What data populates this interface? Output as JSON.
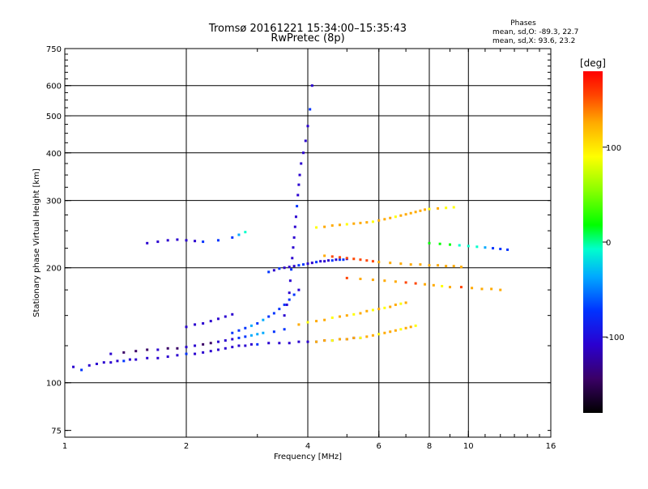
{
  "chart_data": {
    "type": "scatter",
    "title": "Tromsø 20161221 15:34:00–15:35:43",
    "subtitle": "RwPretec (8p)",
    "xlabel": "Frequency [MHz]",
    "ylabel": "Stationary phase Virtual Height [km]",
    "x_scale": "log",
    "y_scale": "log",
    "xlim": [
      1,
      16
    ],
    "ylim": [
      72,
      750
    ],
    "x_ticks": [
      1,
      2,
      4,
      6,
      8,
      10,
      16
    ],
    "y_ticks": [
      75,
      100,
      200,
      300,
      400,
      500,
      600,
      750
    ],
    "grid_x": [
      2,
      4,
      6,
      8,
      10
    ],
    "grid_y": [
      100,
      200,
      300,
      400,
      500,
      600
    ],
    "stats": {
      "heading": "Phases",
      "line_o": "mean, sd,O: -89.3, 22.7",
      "line_x": "mean, sd,X:  93.6, 23.2"
    },
    "colorbar": {
      "label": "[deg]",
      "range": [
        -180,
        180
      ],
      "ticks": [
        100,
        0,
        -100
      ],
      "colors": [
        "#000000",
        "#3a0066",
        "#2a00d0",
        "#0033ff",
        "#00aaff",
        "#00ffcc",
        "#00ff00",
        "#88ff00",
        "#ffff00",
        "#ffaa00",
        "#ff4400",
        "#ff0000"
      ]
    },
    "series": [
      {
        "x": [
          1.05,
          1.1,
          1.15,
          1.2,
          1.25,
          1.3,
          1.35,
          1.4,
          1.45,
          1.5,
          1.6,
          1.7,
          1.8,
          1.9,
          2.0,
          2.1,
          2.2,
          2.3,
          2.4,
          2.5,
          2.6,
          2.7,
          2.8,
          2.9,
          3.0,
          3.2,
          3.4,
          3.6,
          3.8,
          4.0,
          4.2,
          4.4,
          4.6,
          4.8,
          5.0,
          5.2,
          5.4
        ],
        "y": [
          110,
          108,
          111,
          112,
          113,
          113,
          114,
          114,
          115,
          115,
          116,
          116,
          117,
          118,
          119,
          119,
          120,
          121,
          122,
          123,
          124,
          125,
          125,
          126,
          126,
          127,
          127,
          127,
          128,
          128,
          128,
          129,
          129,
          130,
          130,
          131,
          131
        ],
        "phase": [
          -100,
          -95,
          -110,
          -105,
          -100,
          -115,
          -100,
          -95,
          -105,
          -110,
          -100,
          -105,
          -100,
          -110,
          -95,
          -100,
          -105,
          -100,
          -110,
          -100,
          -100,
          -105,
          -110,
          -100,
          -95,
          -100,
          -110,
          -105,
          -100,
          -100,
          -95,
          -100,
          -110,
          -95,
          -100,
          -105,
          -100
        ]
      },
      {
        "x": [
          1.3,
          1.4,
          1.5,
          1.6,
          1.7,
          1.8,
          1.9,
          2.0,
          2.1,
          2.2,
          2.3,
          2.4,
          2.5,
          2.6,
          2.7,
          2.8,
          2.9,
          3.0,
          3.1,
          3.3,
          3.5
        ],
        "y": [
          119,
          120,
          121,
          122,
          122,
          123,
          123,
          124,
          125,
          126,
          127,
          128,
          129,
          130,
          131,
          132,
          133,
          134,
          135,
          136,
          138
        ],
        "phase": [
          -130,
          -135,
          -140,
          -135,
          -130,
          -140,
          -135,
          -130,
          -125,
          -135,
          -140,
          -130,
          -120,
          -110,
          -80,
          -70,
          -60,
          -65,
          -60,
          -70,
          -80
        ]
      },
      {
        "x": [
          2.6,
          2.7,
          2.8,
          2.9,
          3.0,
          3.1,
          3.2,
          3.3,
          3.4,
          3.5,
          3.6,
          3.7,
          3.8
        ],
        "y": [
          135,
          137,
          139,
          141,
          143,
          146,
          149,
          152,
          156,
          160,
          165,
          170,
          175
        ],
        "phase": [
          -80,
          -70,
          -75,
          -65,
          -70,
          -60,
          -70,
          -75,
          -80,
          -85,
          -90,
          -95,
          -100
        ]
      },
      {
        "x": [
          3.5,
          3.55,
          3.6,
          3.62,
          3.64,
          3.66,
          3.68,
          3.7,
          3.72,
          3.74,
          3.76,
          3.78,
          3.8,
          3.82,
          3.85,
          3.9,
          3.95,
          4.0,
          4.05,
          4.1
        ],
        "y": [
          150,
          160,
          172,
          185,
          198,
          212,
          226,
          240,
          256,
          272,
          290,
          310,
          330,
          350,
          375,
          400,
          430,
          470,
          520,
          600
        ],
        "phase": [
          -105,
          -100,
          -110,
          -100,
          -95,
          -105,
          -100,
          -110,
          -105,
          -100,
          -95,
          -100,
          -110,
          -100,
          -105,
          -110,
          -100,
          -105,
          -95,
          -100
        ]
      },
      {
        "x": [
          3.2,
          3.3,
          3.4,
          3.5,
          3.6,
          3.7,
          3.8,
          3.9,
          4.0,
          4.1,
          4.2,
          4.3,
          4.4,
          4.5,
          4.6,
          4.7,
          4.8,
          4.9,
          5.0
        ],
        "y": [
          195,
          197,
          199,
          200,
          201,
          202,
          203,
          204,
          205,
          206,
          207,
          208,
          208,
          209,
          209,
          210,
          210,
          210,
          211
        ],
        "phase": [
          -90,
          -100,
          -95,
          -100,
          -110,
          -100,
          -95,
          -90,
          -100,
          -105,
          -95,
          -100,
          -110,
          -100,
          -95,
          -100,
          -90,
          -95,
          -100
        ]
      },
      {
        "x": [
          3.8,
          4.0,
          4.2,
          4.4,
          4.6,
          4.8,
          5.0,
          5.2,
          5.4,
          5.6,
          5.8,
          6.0,
          6.2,
          6.4,
          6.6,
          6.8,
          7.0
        ],
        "y": [
          142,
          144,
          145,
          146,
          148,
          149,
          150,
          151,
          152,
          154,
          155,
          156,
          157,
          158,
          160,
          161,
          162
        ],
        "phase": [
          100,
          95,
          105,
          100,
          90,
          100,
          110,
          95,
          100,
          105,
          90,
          100,
          95,
          100,
          110,
          95,
          100
        ]
      },
      {
        "x": [
          4.2,
          4.4,
          4.6,
          4.8,
          5.0,
          5.2,
          5.4,
          5.6,
          5.8,
          6.0,
          6.2,
          6.4,
          6.6,
          6.8,
          7.0,
          7.2,
          7.4
        ],
        "y": [
          128,
          129,
          129,
          130,
          130,
          131,
          131,
          132,
          133,
          134,
          135,
          136,
          137,
          138,
          139,
          140,
          141
        ],
        "phase": [
          100,
          105,
          95,
          100,
          110,
          100,
          95,
          105,
          100,
          95,
          100,
          110,
          100,
          95,
          100,
          105,
          90
        ]
      },
      {
        "x": [
          4.2,
          4.4,
          4.6,
          4.8,
          5.0,
          5.2,
          5.4,
          5.6,
          5.8,
          6.0,
          6.2,
          6.4,
          6.6,
          6.8,
          7.0,
          7.2,
          7.4,
          7.6,
          7.8,
          8.0,
          8.4,
          8.8,
          9.2
        ],
        "y": [
          255,
          256,
          258,
          259,
          260,
          261,
          262,
          263,
          264,
          266,
          268,
          270,
          272,
          274,
          276,
          278,
          280,
          282,
          284,
          285,
          286,
          287,
          288
        ],
        "phase": [
          90,
          100,
          110,
          100,
          95,
          105,
          120,
          100,
          95,
          110,
          100,
          105,
          95,
          110,
          120,
          100,
          105,
          110,
          100,
          95,
          100,
          90,
          85
        ]
      },
      {
        "x": [
          4.4,
          4.6,
          4.8,
          5.0,
          5.2,
          5.4,
          5.6,
          5.8,
          6.0,
          6.4,
          6.8,
          7.2,
          7.6,
          8.0,
          8.4,
          8.8,
          9.2,
          9.6
        ],
        "y": [
          215,
          214,
          213,
          212,
          211,
          210,
          209,
          208,
          207,
          206,
          205,
          204,
          204,
          203,
          203,
          202,
          202,
          201
        ],
        "phase": [
          130,
          140,
          150,
          160,
          145,
          135,
          140,
          150,
          120,
          110,
          115,
          120,
          110,
          105,
          100,
          110,
          120,
          115
        ]
      },
      {
        "x": [
          5.0,
          5.4,
          5.8,
          6.2,
          6.6,
          7.0,
          7.4,
          7.8,
          8.2,
          8.6,
          9.0,
          9.6,
          10.2,
          10.8,
          11.4,
          12.0
        ],
        "y": [
          188,
          187,
          186,
          185,
          184,
          183,
          182,
          181,
          180,
          179,
          178,
          178,
          177,
          176,
          176,
          175
        ],
        "phase": [
          150,
          120,
          100,
          110,
          130,
          160,
          140,
          120,
          100,
          90,
          110,
          140,
          120,
          100,
          110,
          130
        ]
      },
      {
        "x": [
          8.0,
          8.5,
          9.0,
          9.5,
          10.0,
          10.5,
          11.0,
          11.5,
          12.0,
          12.5
        ],
        "y": [
          232,
          231,
          230,
          229,
          228,
          227,
          226,
          225,
          224,
          223
        ],
        "phase": [
          20,
          10,
          5,
          -10,
          -20,
          -30,
          -60,
          -70,
          -80,
          -90
        ]
      },
      {
        "x": [
          1.6,
          1.7,
          1.8,
          1.9,
          2.0,
          2.1,
          2.2,
          2.4,
          2.6,
          2.7,
          2.8
        ],
        "y": [
          232,
          234,
          236,
          237,
          236,
          235,
          234,
          236,
          240,
          244,
          248
        ],
        "phase": [
          -110,
          -100,
          -105,
          -100,
          -110,
          -100,
          -90,
          -80,
          -70,
          -40,
          -30
        ]
      },
      {
        "x": [
          2.0,
          2.1,
          2.2,
          2.3,
          2.4,
          2.5,
          2.6
        ],
        "y": [
          140,
          142,
          143,
          145,
          147,
          149,
          151
        ],
        "phase": [
          -110,
          -105,
          -100,
          -110,
          -100,
          -105,
          -110
        ]
      }
    ]
  }
}
